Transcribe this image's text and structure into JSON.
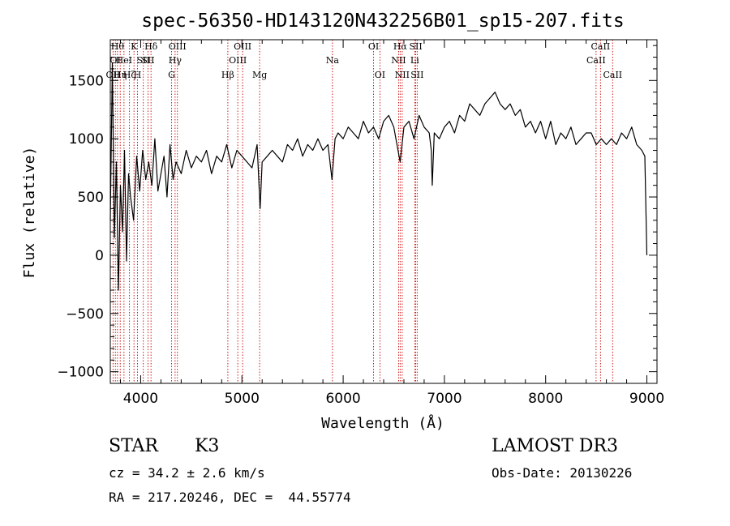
{
  "chart_data": {
    "type": "line",
    "title": "spec-56350-HD143120N432256B01_sp15-207.fits",
    "xlabel": "Wavelength (Å)",
    "ylabel": "Flux (relative)",
    "xlim": [
      3700,
      9100
    ],
    "ylim": [
      -1100,
      1850
    ],
    "x_ticks": [
      4000,
      5000,
      6000,
      7000,
      8000,
      9000
    ],
    "x_tick_labels": [
      "4000",
      "5000",
      "6000",
      "7000",
      "8000",
      "9000"
    ],
    "y_ticks": [
      -1000,
      -500,
      0,
      500,
      1000,
      1500
    ],
    "y_tick_labels": [
      "−1000",
      "−500",
      "0",
      "500",
      "1000",
      "1500"
    ],
    "line_color": "#000000",
    "marker_color": "#cc0000",
    "grid": false,
    "series": [
      {
        "x": [
          3700,
          3720,
          3740,
          3760,
          3780,
          3800,
          3820,
          3840,
          3860,
          3880,
          3900,
          3930,
          3960,
          3990,
          4020,
          4050,
          4080,
          4110,
          4140,
          4170,
          4200,
          4230,
          4260,
          4290,
          4320,
          4350,
          4400,
          4450,
          4500,
          4550,
          4600,
          4650,
          4700,
          4750,
          4800,
          4850,
          4900,
          4950,
          5000,
          5050,
          5100,
          5150,
          5180,
          5200,
          5250,
          5300,
          5350,
          5400,
          5450,
          5500,
          5550,
          5600,
          5650,
          5700,
          5750,
          5800,
          5850,
          5890,
          5920,
          5950,
          6000,
          6050,
          6100,
          6150,
          6200,
          6250,
          6300,
          6350,
          6400,
          6450,
          6500,
          6563,
          6600,
          6650,
          6700,
          6750,
          6800,
          6850,
          6870,
          6880,
          6900,
          6950,
          7000,
          7050,
          7100,
          7150,
          7200,
          7250,
          7300,
          7350,
          7400,
          7450,
          7500,
          7550,
          7600,
          7650,
          7700,
          7750,
          7800,
          7850,
          7900,
          7950,
          8000,
          8050,
          8100,
          8150,
          8200,
          8250,
          8300,
          8350,
          8400,
          8450,
          8500,
          8550,
          8600,
          8650,
          8700,
          8750,
          8800,
          8850,
          8900,
          8950,
          8980,
          9000
        ],
        "y": [
          300,
          1650,
          150,
          800,
          -300,
          600,
          200,
          900,
          -50,
          700,
          500,
          300,
          850,
          550,
          900,
          650,
          800,
          600,
          1000,
          550,
          700,
          850,
          500,
          950,
          650,
          800,
          700,
          900,
          750,
          850,
          800,
          900,
          700,
          850,
          800,
          950,
          750,
          900,
          850,
          800,
          750,
          950,
          400,
          800,
          850,
          900,
          850,
          800,
          950,
          900,
          1000,
          850,
          950,
          900,
          1000,
          900,
          950,
          650,
          1000,
          1050,
          1000,
          1100,
          1050,
          1000,
          1150,
          1050,
          1100,
          1000,
          1150,
          1200,
          1100,
          800,
          1100,
          1150,
          1000,
          1200,
          1100,
          1050,
          900,
          600,
          1050,
          1000,
          1100,
          1150,
          1050,
          1200,
          1150,
          1300,
          1250,
          1200,
          1300,
          1350,
          1400,
          1300,
          1250,
          1300,
          1200,
          1250,
          1100,
          1150,
          1050,
          1150,
          1000,
          1150,
          950,
          1050,
          1000,
          1100,
          950,
          1000,
          1050,
          1050,
          950,
          1000,
          950,
          1000,
          950,
          1050,
          1000,
          1100,
          950,
          900,
          850,
          0
        ]
      }
    ],
    "line_markers": [
      {
        "x": 3727,
        "label": "OII",
        "row": 3
      },
      {
        "x": 3750,
        "label": "OI",
        "row": 2
      },
      {
        "x": 3771,
        "label": "Hθ",
        "row": 1
      },
      {
        "x": 3798,
        "label": "Hη",
        "row": 3
      },
      {
        "x": 3835,
        "label": "HeI",
        "row": 2
      },
      {
        "x": 3889,
        "label": "Hζ",
        "row": 3
      },
      {
        "x": 3934,
        "label": "K",
        "row": 1
      },
      {
        "x": 3968,
        "label": "H",
        "row": 3
      },
      {
        "x": 4026,
        "label": "SII",
        "row": 2
      },
      {
        "x": 4072,
        "label": "SII",
        "row": 2
      },
      {
        "x": 4102,
        "label": "Hδ",
        "row": 1
      },
      {
        "x": 4305,
        "label": "G",
        "row": 3
      },
      {
        "x": 4340,
        "label": "Hγ",
        "row": 2
      },
      {
        "x": 4363,
        "label": "OIII",
        "row": 1
      },
      {
        "x": 4861,
        "label": "Hβ",
        "row": 3
      },
      {
        "x": 4959,
        "label": "OIII",
        "row": 2
      },
      {
        "x": 5007,
        "label": "OIII",
        "row": 1
      },
      {
        "x": 5175,
        "label": "Mg",
        "row": 3
      },
      {
        "x": 5894,
        "label": "Na",
        "row": 2
      },
      {
        "x": 6300,
        "label": "OI",
        "row": 1
      },
      {
        "x": 6363,
        "label": "OI",
        "row": 3
      },
      {
        "x": 6548,
        "label": "NII",
        "row": 2
      },
      {
        "x": 6563,
        "label": "Hα",
        "row": 1
      },
      {
        "x": 6583,
        "label": "NII",
        "row": 3
      },
      {
        "x": 6707,
        "label": "Li",
        "row": 2
      },
      {
        "x": 6717,
        "label": "SII",
        "row": 1
      },
      {
        "x": 6731,
        "label": "SII",
        "row": 3
      },
      {
        "x": 8498,
        "label": "CaII",
        "row": 2
      },
      {
        "x": 8542,
        "label": "CaII",
        "row": 1
      },
      {
        "x": 8662,
        "label": "CaII",
        "row": 3
      }
    ]
  },
  "info": {
    "object_class": "STAR",
    "subclass": "K3",
    "survey": "LAMOST DR3",
    "redshift_line": "cz = 34.2 ± 2.6 km/s",
    "obs_date_line": "Obs-Date: 20130226",
    "coords_line": "RA = 217.20246, DEC =  44.55774"
  }
}
